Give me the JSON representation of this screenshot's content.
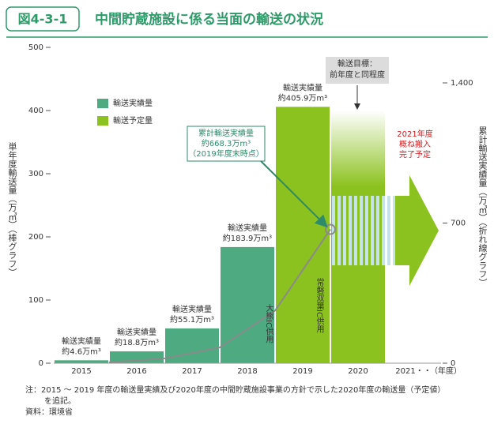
{
  "chart_data": {
    "type": "bar",
    "figure_label": "図4-3-1",
    "title": "中間貯蔵施設に係る当面の輸送の状況",
    "categories": [
      "2015",
      "2016",
      "2017",
      "2018",
      "2019",
      "2020",
      "2021・・"
    ],
    "x_label": "（年度）",
    "y_label": "単年度輸送量（万㎥）（棒グラフ）",
    "y2_label": "累計輸送実績量（万㎥）（折れ線グラフ）",
    "ylim": [
      0,
      500
    ],
    "yticks": [
      0,
      100,
      200,
      300,
      400,
      500
    ],
    "y2lim": [
      0,
      1400
    ],
    "y2ticks": [
      0,
      700,
      {
        "value": 1400,
        "label": "1,400"
      }
    ],
    "series": [
      {
        "name": "輸送実績量",
        "color": "#4eaa80",
        "values": [
          4.6,
          18.8,
          55.1,
          183.9,
          405.9,
          null,
          null
        ],
        "bar_colors": [
          "#4eaa80",
          "#4eaa80",
          "#4eaa80",
          "#4eaa80",
          "#8cc21f",
          null,
          null
        ],
        "label_header": "輸送実績量",
        "value_labels": [
          "約4.6万m³",
          "約18.8万m³",
          "約55.1万m³",
          "約183.9万m³",
          "約405.9万m³",
          null,
          null
        ]
      },
      {
        "name": "輸送予定量",
        "color": "#8cc21f",
        "values": [
          null,
          null,
          null,
          null,
          null,
          400,
          null
        ]
      }
    ],
    "line_series": {
      "axis": "y2",
      "color": "#8a8a8a",
      "values": [
        4.6,
        23.4,
        78.5,
        262.4,
        668.3,
        null,
        null
      ]
    },
    "annotations": {
      "cumulative": [
        "累計輸送実績量",
        "約668.3万m³",
        "（2019年度末時点）"
      ],
      "target": [
        "輸送目標：",
        "前年度と同程度"
      ],
      "completion": [
        "2021年度",
        "概ね搬入",
        "完了予定"
      ],
      "okuma_ic": "大熊IC供用",
      "joban_ic": "常磐双葉IC供用"
    },
    "note": [
      "注：2015 ～ 2019 年度の輸送量実績及び2020年度の中間貯蔵施設事業の方針で示した2020年度の輸送量（予定値）",
      "を追記。"
    ],
    "source": "資料：環境省"
  }
}
